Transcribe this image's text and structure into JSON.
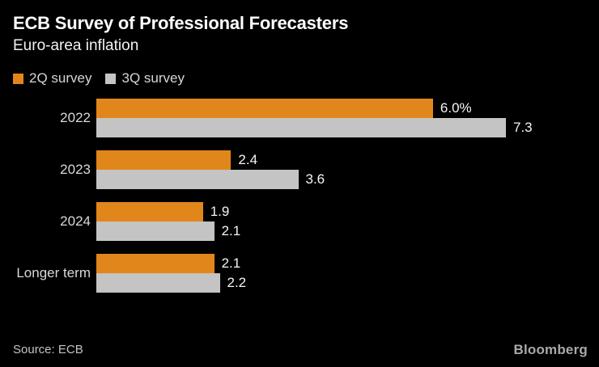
{
  "header": {
    "title": "ECB Survey of Professional Forecasters",
    "subtitle": "Euro-area inflation"
  },
  "legend": [
    {
      "label": "2Q survey",
      "color": "#e1861b"
    },
    {
      "label": "3Q survey",
      "color": "#c4c4c4"
    }
  ],
  "chart_data": {
    "type": "bar",
    "orientation": "horizontal",
    "title": "ECB Survey of Professional Forecasters",
    "subtitle": "Euro-area inflation",
    "categories": [
      "2022",
      "2023",
      "2024",
      "Longer term"
    ],
    "series": [
      {
        "name": "2Q survey",
        "color": "#e1861b",
        "values": [
          6.0,
          2.4,
          1.9,
          2.1
        ],
        "labels": [
          "6.0%",
          "2.4",
          "1.9",
          "2.1"
        ]
      },
      {
        "name": "3Q survey",
        "color": "#c4c4c4",
        "values": [
          7.3,
          3.6,
          2.1,
          2.2
        ],
        "labels": [
          "7.3",
          "3.6",
          "2.1",
          "2.2"
        ]
      }
    ],
    "xlim": [
      0,
      7.3
    ],
    "grid": false,
    "legend_position": "top-left",
    "value_unit": "%"
  },
  "footer": {
    "source": "Source: ECB",
    "logo": "Bloomberg"
  },
  "colors": {
    "background": "#000000",
    "accent_orange": "#e1861b",
    "bar_gray": "#c4c4c4",
    "title_text": "#ffffff",
    "label_text": "#d9d9d9",
    "value_text": "#f5f5f5",
    "source_text": "#c4c4c4",
    "logo_text": "#a9a9a9"
  }
}
